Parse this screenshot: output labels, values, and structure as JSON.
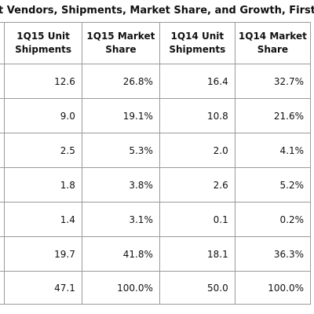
{
  "title": "t Vendors, Shipments, Market Share, and Growth, First Quarter",
  "headers": [
    {
      "line1": "1Q15 Unit",
      "line2": "Shipments"
    },
    {
      "line1": "1Q15 Market",
      "line2": "Share"
    },
    {
      "line1": "1Q14 Unit",
      "line2": "Shipments"
    },
    {
      "line1": "1Q14 Market",
      "line2": "Share"
    }
  ],
  "rows": [
    [
      "12.6",
      "26.8%",
      "16.4",
      "32.7%"
    ],
    [
      "9.0",
      "19.1%",
      "10.8",
      "21.6%"
    ],
    [
      "2.5",
      "5.3%",
      "2.0",
      "4.1%"
    ],
    [
      "1.8",
      "3.8%",
      "2.6",
      "5.2%"
    ],
    [
      "1.4",
      "3.1%",
      "0.1",
      "0.2%"
    ],
    [
      "19.7",
      "41.8%",
      "18.1",
      "36.3%"
    ],
    [
      "47.1",
      "100.0%",
      "50.0",
      "100.0%"
    ]
  ]
}
